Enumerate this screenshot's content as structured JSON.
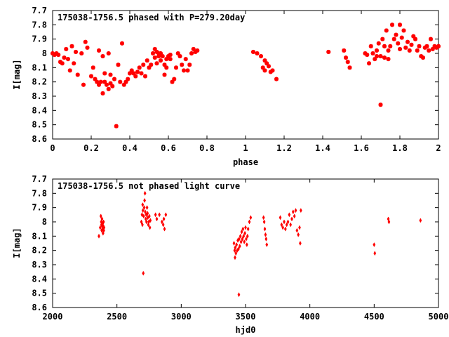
{
  "chart_data": [
    {
      "type": "scatter",
      "title": "175038-1756.5 phased with P=279.20day",
      "xlabel": "phase",
      "ylabel": "I[mag]",
      "xlim": [
        0,
        2
      ],
      "ylim": [
        8.6,
        7.7
      ],
      "y_inverted": true,
      "grid": false,
      "color": "#ff0000",
      "marker": "star",
      "x_ticks": [
        "0",
        "0.2",
        "0.4",
        "0.6",
        "0.8",
        "1",
        "1.2",
        "1.4",
        "1.6",
        "1.8",
        "2"
      ],
      "x_tick_values": [
        0,
        0.2,
        0.4,
        0.6,
        0.8,
        1.0,
        1.2,
        1.4,
        1.6,
        1.8,
        2.0
      ],
      "y_ticks": [
        "7.7",
        "7.8",
        "7.9",
        "8",
        "8.1",
        "8.2",
        "8.3",
        "8.4",
        "8.5",
        "8.6"
      ],
      "y_tick_values": [
        7.7,
        7.8,
        7.9,
        8.0,
        8.1,
        8.2,
        8.3,
        8.4,
        8.5,
        8.6
      ],
      "points": [
        [
          0.0,
          8.0
        ],
        [
          0.01,
          8.01
        ],
        [
          0.02,
          8.0
        ],
        [
          0.03,
          8.01
        ],
        [
          0.04,
          8.06
        ],
        [
          0.05,
          8.07
        ],
        [
          0.06,
          8.03
        ],
        [
          0.07,
          7.97
        ],
        [
          0.08,
          8.04
        ],
        [
          0.09,
          8.12
        ],
        [
          0.1,
          7.95
        ],
        [
          0.11,
          8.07
        ],
        [
          0.12,
          7.99
        ],
        [
          0.13,
          8.15
        ],
        [
          0.15,
          8.0
        ],
        [
          0.16,
          8.22
        ],
        [
          0.17,
          7.92
        ],
        [
          0.18,
          7.96
        ],
        [
          0.2,
          8.16
        ],
        [
          0.21,
          8.1
        ],
        [
          0.22,
          8.18
        ],
        [
          0.23,
          8.2
        ],
        [
          0.24,
          8.22
        ],
        [
          0.24,
          7.98
        ],
        [
          0.25,
          8.2
        ],
        [
          0.26,
          8.02
        ],
        [
          0.26,
          8.28
        ],
        [
          0.27,
          8.2
        ],
        [
          0.27,
          8.14
        ],
        [
          0.28,
          8.22
        ],
        [
          0.29,
          8.0
        ],
        [
          0.29,
          8.25
        ],
        [
          0.3,
          8.21
        ],
        [
          0.3,
          8.15
        ],
        [
          0.31,
          8.23
        ],
        [
          0.32,
          8.18
        ],
        [
          0.33,
          8.51
        ],
        [
          0.34,
          8.08
        ],
        [
          0.35,
          8.2
        ],
        [
          0.36,
          7.93
        ],
        [
          0.37,
          8.22
        ],
        [
          0.38,
          8.2
        ],
        [
          0.39,
          8.18
        ],
        [
          0.4,
          8.14
        ],
        [
          0.41,
          8.12
        ],
        [
          0.42,
          8.14
        ],
        [
          0.43,
          8.16
        ],
        [
          0.44,
          8.13
        ],
        [
          0.45,
          8.1
        ],
        [
          0.46,
          8.14
        ],
        [
          0.47,
          8.08
        ],
        [
          0.48,
          8.16
        ],
        [
          0.49,
          8.05
        ],
        [
          0.5,
          8.1
        ],
        [
          0.51,
          8.08
        ],
        [
          0.52,
          8.0
        ],
        [
          0.53,
          7.97
        ],
        [
          0.53,
          8.03
        ],
        [
          0.54,
          7.99
        ],
        [
          0.54,
          8.07
        ],
        [
          0.55,
          8.0
        ],
        [
          0.55,
          8.02
        ],
        [
          0.56,
          8.05
        ],
        [
          0.56,
          8.0
        ],
        [
          0.57,
          8.02
        ],
        [
          0.58,
          8.15
        ],
        [
          0.58,
          8.08
        ],
        [
          0.59,
          8.1
        ],
        [
          0.59,
          8.04
        ],
        [
          0.6,
          8.02
        ],
        [
          0.61,
          8.01
        ],
        [
          0.61,
          8.04
        ],
        [
          0.62,
          8.2
        ],
        [
          0.63,
          8.18
        ],
        [
          0.64,
          8.1
        ],
        [
          0.65,
          8.0
        ],
        [
          0.66,
          8.02
        ],
        [
          0.67,
          8.08
        ],
        [
          0.68,
          8.12
        ],
        [
          0.69,
          8.04
        ],
        [
          0.7,
          8.12
        ],
        [
          0.71,
          8.08
        ],
        [
          0.72,
          8.0
        ],
        [
          0.73,
          7.97
        ],
        [
          0.74,
          7.99
        ],
        [
          0.75,
          7.98
        ],
        [
          1.04,
          7.99
        ],
        [
          1.06,
          8.0
        ],
        [
          1.08,
          8.02
        ],
        [
          1.09,
          8.1
        ],
        [
          1.1,
          8.12
        ],
        [
          1.1,
          8.05
        ],
        [
          1.11,
          8.07
        ],
        [
          1.12,
          8.09
        ],
        [
          1.13,
          8.13
        ],
        [
          1.14,
          8.12
        ],
        [
          1.16,
          8.18
        ],
        [
          1.43,
          7.99
        ],
        [
          1.51,
          7.98
        ],
        [
          1.52,
          8.03
        ],
        [
          1.53,
          8.06
        ],
        [
          1.54,
          8.1
        ],
        [
          1.62,
          8.0
        ],
        [
          1.63,
          8.01
        ],
        [
          1.64,
          8.07
        ],
        [
          1.65,
          7.95
        ],
        [
          1.66,
          8.0
        ],
        [
          1.67,
          8.04
        ],
        [
          1.68,
          8.02
        ],
        [
          1.68,
          7.98
        ],
        [
          1.69,
          7.93
        ],
        [
          1.7,
          8.02
        ],
        [
          1.7,
          8.36
        ],
        [
          1.71,
          7.9
        ],
        [
          1.72,
          8.03
        ],
        [
          1.72,
          7.95
        ],
        [
          1.73,
          7.84
        ],
        [
          1.74,
          8.04
        ],
        [
          1.74,
          7.98
        ],
        [
          1.75,
          7.95
        ],
        [
          1.76,
          7.8
        ],
        [
          1.77,
          7.9
        ],
        [
          1.78,
          7.87
        ],
        [
          1.79,
          7.93
        ],
        [
          1.8,
          7.8
        ],
        [
          1.8,
          7.97
        ],
        [
          1.81,
          7.89
        ],
        [
          1.82,
          7.84
        ],
        [
          1.83,
          7.96
        ],
        [
          1.84,
          7.92
        ],
        [
          1.85,
          7.98
        ],
        [
          1.86,
          7.94
        ],
        [
          1.87,
          7.88
        ],
        [
          1.88,
          7.9
        ],
        [
          1.89,
          7.98
        ],
        [
          1.9,
          7.95
        ],
        [
          1.91,
          8.02
        ],
        [
          1.92,
          8.03
        ],
        [
          1.93,
          7.96
        ],
        [
          1.94,
          7.95
        ],
        [
          1.95,
          7.98
        ],
        [
          1.96,
          7.9
        ],
        [
          1.97,
          7.97
        ],
        [
          1.98,
          7.95
        ],
        [
          1.99,
          7.96
        ],
        [
          2.0,
          7.95
        ]
      ]
    },
    {
      "type": "scatter",
      "title": "175038-1756.5 not phased light curve",
      "xlabel": "hjd0",
      "ylabel": "I[mag]",
      "xlim": [
        2000,
        5000
      ],
      "ylim": [
        8.6,
        7.7
      ],
      "y_inverted": true,
      "grid": false,
      "color": "#ff0000",
      "marker": "diamond",
      "x_ticks": [
        "2000",
        "2500",
        "3000",
        "3500",
        "4000",
        "4500",
        "5000"
      ],
      "x_tick_values": [
        2000,
        2500,
        3000,
        3500,
        4000,
        4500,
        5000
      ],
      "y_ticks": [
        "7.7",
        "7.8",
        "7.9",
        "8",
        "8.1",
        "8.2",
        "8.3",
        "8.4",
        "8.5",
        "8.6"
      ],
      "y_tick_values": [
        7.7,
        7.8,
        7.9,
        8.0,
        8.1,
        8.2,
        8.3,
        8.4,
        8.5,
        8.6
      ],
      "points": [
        [
          2360,
          8.1
        ],
        [
          2370,
          8.04
        ],
        [
          2375,
          7.96
        ],
        [
          2378,
          8.0
        ],
        [
          2380,
          8.02
        ],
        [
          2382,
          8.06
        ],
        [
          2384,
          7.98
        ],
        [
          2386,
          8.03
        ],
        [
          2388,
          8.05
        ],
        [
          2390,
          8.01
        ],
        [
          2392,
          8.08
        ],
        [
          2394,
          8.03
        ],
        [
          2396,
          8.0
        ],
        [
          2398,
          8.06
        ],
        [
          2400,
          8.04
        ],
        [
          2690,
          8.0
        ],
        [
          2695,
          7.95
        ],
        [
          2698,
          8.02
        ],
        [
          2700,
          7.88
        ],
        [
          2702,
          7.92
        ],
        [
          2705,
          8.36
        ],
        [
          2708,
          7.96
        ],
        [
          2712,
          7.9
        ],
        [
          2715,
          7.85
        ],
        [
          2718,
          7.8
        ],
        [
          2720,
          7.93
        ],
        [
          2724,
          7.98
        ],
        [
          2728,
          7.95
        ],
        [
          2730,
          8.0
        ],
        [
          2734,
          7.9
        ],
        [
          2738,
          7.94
        ],
        [
          2740,
          7.97
        ],
        [
          2744,
          8.02
        ],
        [
          2748,
          8.0
        ],
        [
          2752,
          7.96
        ],
        [
          2756,
          8.04
        ],
        [
          2760,
          7.99
        ],
        [
          2800,
          7.95
        ],
        [
          2810,
          7.98
        ],
        [
          2830,
          7.95
        ],
        [
          2850,
          8.0
        ],
        [
          2860,
          8.02
        ],
        [
          2865,
          7.98
        ],
        [
          2870,
          8.05
        ],
        [
          2880,
          7.95
        ],
        [
          3410,
          8.15
        ],
        [
          3415,
          8.2
        ],
        [
          3418,
          8.25
        ],
        [
          3420,
          8.18
        ],
        [
          3425,
          8.22
        ],
        [
          3430,
          8.16
        ],
        [
          3435,
          8.2
        ],
        [
          3440,
          8.13
        ],
        [
          3445,
          8.19
        ],
        [
          3448,
          8.51
        ],
        [
          3450,
          8.12
        ],
        [
          3455,
          8.17
        ],
        [
          3460,
          8.1
        ],
        [
          3465,
          8.14
        ],
        [
          3470,
          8.07
        ],
        [
          3475,
          8.12
        ],
        [
          3480,
          8.05
        ],
        [
          3485,
          8.1
        ],
        [
          3490,
          8.14
        ],
        [
          3495,
          8.08
        ],
        [
          3500,
          8.04
        ],
        [
          3505,
          8.12
        ],
        [
          3510,
          8.16
        ],
        [
          3515,
          8.1
        ],
        [
          3520,
          8.05
        ],
        [
          3530,
          8.0
        ],
        [
          3540,
          7.97
        ],
        [
          3640,
          7.97
        ],
        [
          3645,
          8.0
        ],
        [
          3650,
          8.05
        ],
        [
          3655,
          8.09
        ],
        [
          3660,
          8.12
        ],
        [
          3665,
          8.16
        ],
        [
          3770,
          7.97
        ],
        [
          3780,
          8.02
        ],
        [
          3790,
          8.04
        ],
        [
          3800,
          8.0
        ],
        [
          3810,
          8.05
        ],
        [
          3820,
          8.02
        ],
        [
          3830,
          8.0
        ],
        [
          3840,
          7.95
        ],
        [
          3850,
          8.02
        ],
        [
          3860,
          7.98
        ],
        [
          3870,
          7.93
        ],
        [
          3880,
          7.96
        ],
        [
          3890,
          7.92
        ],
        [
          3900,
          8.06
        ],
        [
          3910,
          8.09
        ],
        [
          3920,
          8.04
        ],
        [
          3925,
          8.15
        ],
        [
          3930,
          7.92
        ],
        [
          4500,
          8.16
        ],
        [
          4505,
          8.22
        ],
        [
          4610,
          7.98
        ],
        [
          4615,
          8.0
        ],
        [
          4860,
          7.99
        ]
      ]
    }
  ]
}
